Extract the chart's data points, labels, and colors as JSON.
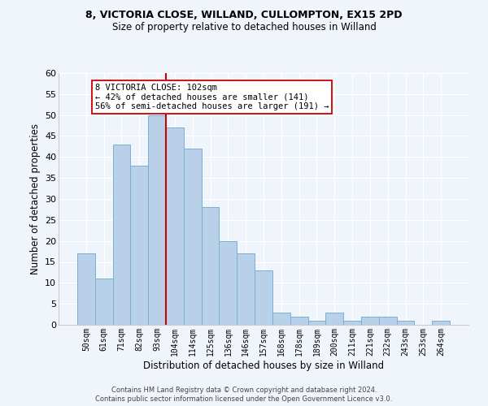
{
  "title1": "8, VICTORIA CLOSE, WILLAND, CULLOMPTON, EX15 2PD",
  "title2": "Size of property relative to detached houses in Willand",
  "xlabel": "Distribution of detached houses by size in Willand",
  "ylabel": "Number of detached properties",
  "bar_labels": [
    "50sqm",
    "61sqm",
    "71sqm",
    "82sqm",
    "93sqm",
    "104sqm",
    "114sqm",
    "125sqm",
    "136sqm",
    "146sqm",
    "157sqm",
    "168sqm",
    "178sqm",
    "189sqm",
    "200sqm",
    "211sqm",
    "221sqm",
    "232sqm",
    "243sqm",
    "253sqm",
    "264sqm"
  ],
  "bar_values": [
    17,
    11,
    43,
    38,
    50,
    47,
    42,
    28,
    20,
    17,
    13,
    3,
    2,
    1,
    3,
    1,
    2,
    2,
    1,
    0,
    1
  ],
  "bar_color": "#b8d0e8",
  "bar_edge_color": "#7aafd4",
  "ylim": [
    0,
    60
  ],
  "yticks": [
    0,
    5,
    10,
    15,
    20,
    25,
    30,
    35,
    40,
    45,
    50,
    55,
    60
  ],
  "vline_x_index": 5,
  "vline_color": "#cc0000",
  "annotation_title": "8 VICTORIA CLOSE: 102sqm",
  "annotation_line1": "← 42% of detached houses are smaller (141)",
  "annotation_line2": "56% of semi-detached houses are larger (191) →",
  "annotation_box_color": "#ffffff",
  "annotation_box_edge": "#cc0000",
  "footer1": "Contains HM Land Registry data © Crown copyright and database right 2024.",
  "footer2": "Contains public sector information licensed under the Open Government Licence v3.0.",
  "background_color": "#f0f5fb"
}
